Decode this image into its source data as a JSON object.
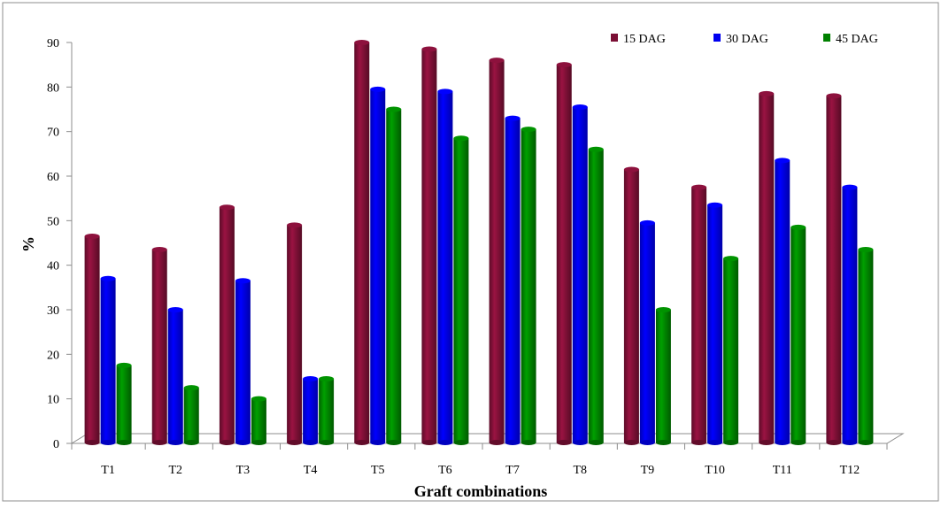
{
  "chart_data": {
    "type": "bar",
    "title": "",
    "xlabel": "Graft combinations",
    "ylabel": "%",
    "ylim": [
      0,
      90
    ],
    "yticks": [
      0,
      10,
      20,
      30,
      40,
      50,
      60,
      70,
      80,
      90
    ],
    "grid": false,
    "legend_position": "top-right",
    "categories": [
      "T1",
      "T2",
      "T3",
      "T4",
      "T5",
      "T6",
      "T7",
      "T8",
      "T9",
      "T10",
      "T11",
      "T12"
    ],
    "series": [
      {
        "name": "15 DAG",
        "color": "#7b0f35",
        "values": [
          46.5,
          43.5,
          53,
          49,
          90,
          88.5,
          86,
          85,
          61.5,
          57.5,
          78.5,
          78
        ]
      },
      {
        "name": "30 DAG",
        "color": "#0000f0",
        "values": [
          37,
          30,
          36.5,
          14.5,
          79.5,
          79,
          73,
          75.5,
          49.5,
          53.5,
          63.5,
          57.5
        ]
      },
      {
        "name": "45 DAG",
        "color": "#008000",
        "values": [
          17.5,
          12.5,
          10,
          14.5,
          75,
          68.5,
          70.5,
          66,
          30,
          41.5,
          48.5,
          43.5
        ]
      }
    ]
  }
}
